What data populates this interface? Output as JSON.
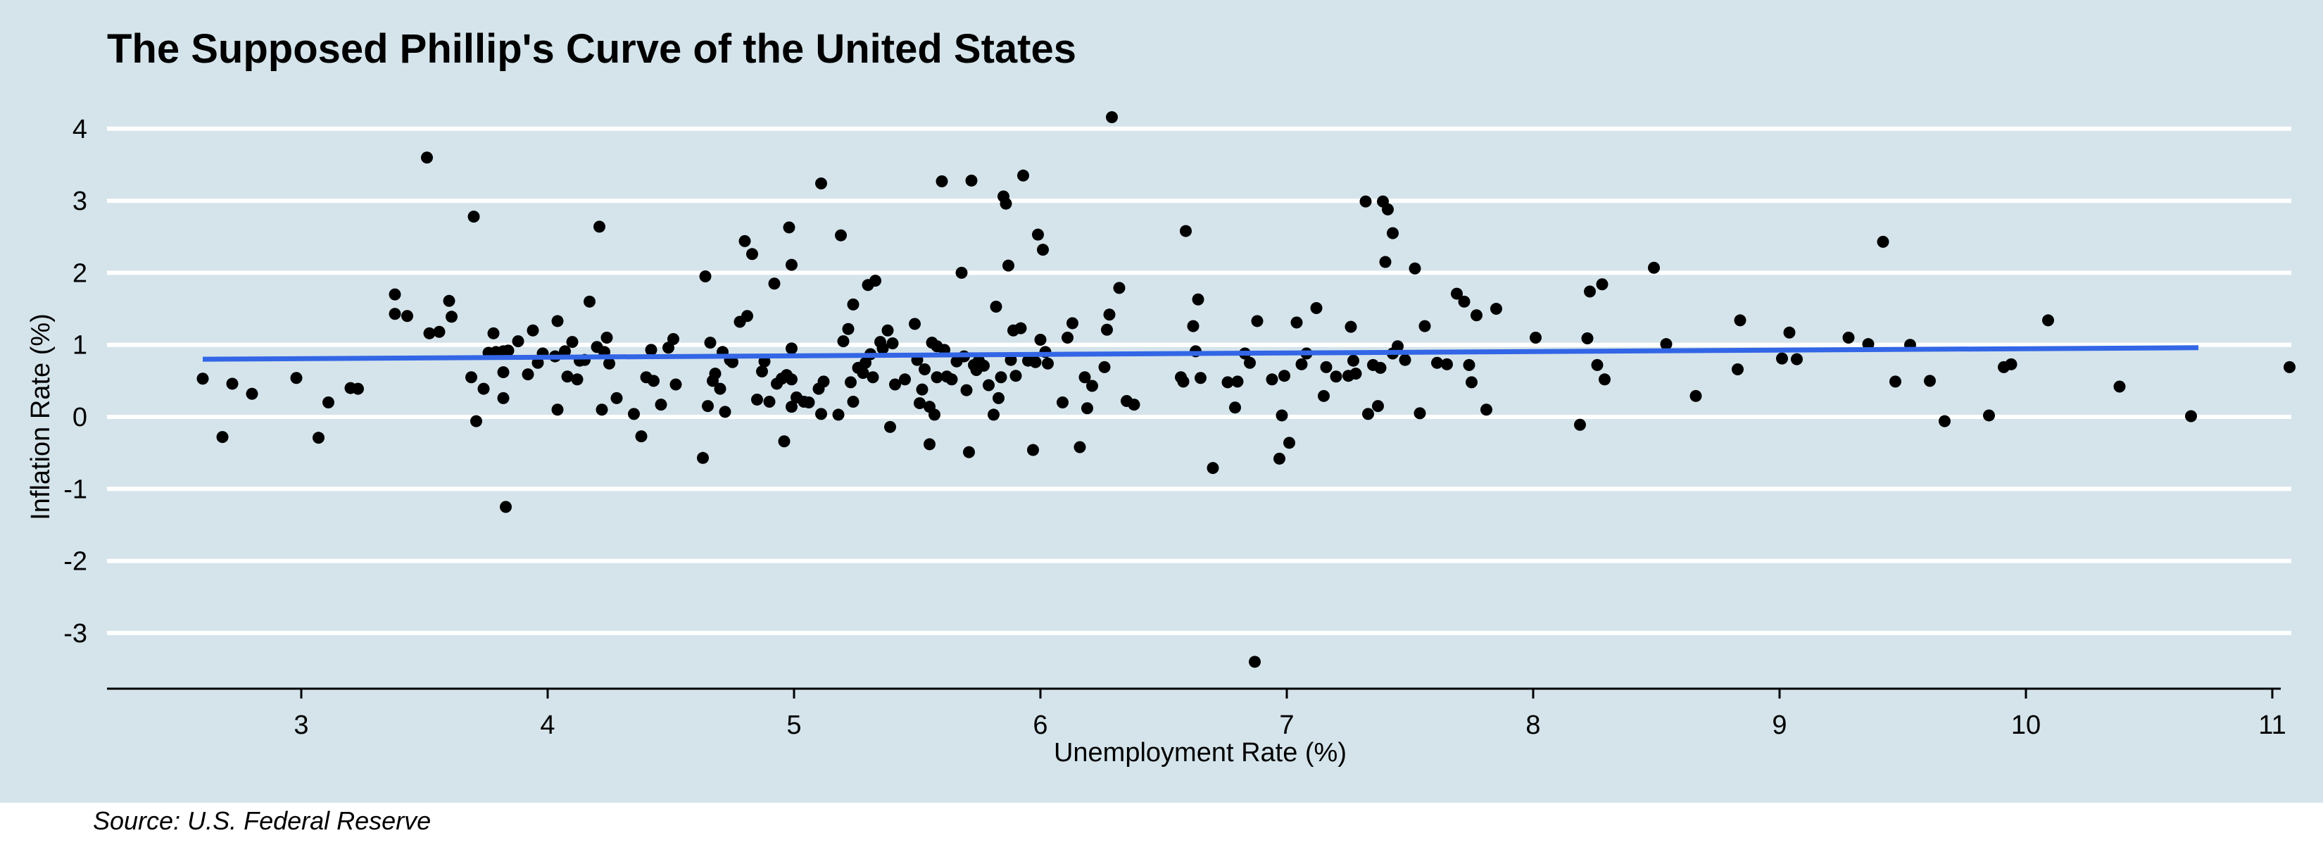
{
  "chart_data": {
    "type": "scatter",
    "title": "The Supposed Phillip's Curve of the United States",
    "xlabel": "Unemployment Rate (%)",
    "ylabel": "Inflation Rate (%)",
    "xlim": [
      2.2,
      11.1
    ],
    "ylim": [
      -3.8,
      4.3
    ],
    "x_ticks": [
      3,
      4,
      5,
      6,
      7,
      8,
      9,
      10,
      11
    ],
    "y_ticks": [
      -3,
      -2,
      -1,
      0,
      1,
      2,
      3,
      4
    ],
    "grid": "horizontal",
    "source": "Source: U.S. Federal Reserve",
    "colors": {
      "background": "#d5e4eb",
      "points": "#000000",
      "trend": "#3366e6",
      "grid": "#ffffff"
    },
    "trend_line": {
      "x": [
        2.6,
        10.7
      ],
      "y": [
        0.8,
        0.96
      ]
    },
    "points": [
      [
        2.6,
        0.53
      ],
      [
        2.68,
        -0.28
      ],
      [
        2.72,
        0.46
      ],
      [
        2.8,
        0.32
      ],
      [
        2.98,
        0.54
      ],
      [
        3.07,
        -0.29
      ],
      [
        3.11,
        0.2
      ],
      [
        3.2,
        0.4
      ],
      [
        3.23,
        0.39
      ],
      [
        3.38,
        1.7
      ],
      [
        3.38,
        1.43
      ],
      [
        3.43,
        1.4
      ],
      [
        3.51,
        3.6
      ],
      [
        3.52,
        1.16
      ],
      [
        3.56,
        1.18
      ],
      [
        3.6,
        1.61
      ],
      [
        3.61,
        1.39
      ],
      [
        3.69,
        0.55
      ],
      [
        3.7,
        2.78
      ],
      [
        3.71,
        -0.06
      ],
      [
        3.74,
        0.39
      ],
      [
        3.76,
        0.89
      ],
      [
        3.78,
        1.16
      ],
      [
        3.79,
        0.9
      ],
      [
        3.82,
        0.91
      ],
      [
        3.82,
        0.62
      ],
      [
        3.83,
        -1.25
      ],
      [
        3.82,
        0.26
      ],
      [
        3.84,
        0.92
      ],
      [
        3.88,
        1.05
      ],
      [
        3.92,
        0.59
      ],
      [
        3.94,
        1.2
      ],
      [
        3.96,
        0.75
      ],
      [
        3.98,
        0.88
      ],
      [
        4.03,
        0.84
      ],
      [
        4.04,
        0.1
      ],
      [
        4.04,
        1.33
      ],
      [
        4.07,
        0.91
      ],
      [
        4.08,
        0.56
      ],
      [
        4.1,
        1.04
      ],
      [
        4.12,
        0.52
      ],
      [
        4.13,
        0.78
      ],
      [
        4.15,
        0.79
      ],
      [
        4.17,
        1.6
      ],
      [
        4.2,
        0.97
      ],
      [
        4.21,
        2.64
      ],
      [
        4.22,
        0.1
      ],
      [
        4.23,
        0.9
      ],
      [
        4.24,
        1.1
      ],
      [
        4.25,
        0.74
      ],
      [
        4.28,
        0.26
      ],
      [
        4.35,
        0.04
      ],
      [
        4.38,
        -0.27
      ],
      [
        4.4,
        0.55
      ],
      [
        4.42,
        0.93
      ],
      [
        4.43,
        0.5
      ],
      [
        4.46,
        0.17
      ],
      [
        4.49,
        0.96
      ],
      [
        4.51,
        1.08
      ],
      [
        4.52,
        0.45
      ],
      [
        4.63,
        -0.57
      ],
      [
        4.64,
        1.95
      ],
      [
        4.65,
        0.15
      ],
      [
        4.66,
        1.03
      ],
      [
        4.67,
        0.5
      ],
      [
        4.68,
        0.6
      ],
      [
        4.7,
        0.39
      ],
      [
        4.71,
        0.9
      ],
      [
        4.72,
        0.07
      ],
      [
        4.74,
        0.79
      ],
      [
        4.75,
        0.76
      ],
      [
        4.78,
        1.32
      ],
      [
        4.8,
        2.44
      ],
      [
        4.81,
        1.4
      ],
      [
        4.83,
        2.26
      ],
      [
        4.85,
        0.24
      ],
      [
        4.87,
        0.63
      ],
      [
        4.88,
        0.77
      ],
      [
        4.9,
        0.21
      ],
      [
        4.92,
        1.85
      ],
      [
        4.93,
        0.46
      ],
      [
        4.95,
        0.53
      ],
      [
        4.97,
        0.58
      ],
      [
        4.96,
        -0.34
      ],
      [
        4.98,
        2.63
      ],
      [
        4.99,
        2.11
      ],
      [
        4.99,
        0.52
      ],
      [
        4.99,
        0.14
      ],
      [
        4.99,
        0.95
      ],
      [
        5.01,
        0.27
      ],
      [
        5.04,
        0.21
      ],
      [
        5.06,
        0.2
      ],
      [
        5.1,
        0.39
      ],
      [
        5.11,
        3.24
      ],
      [
        5.11,
        0.04
      ],
      [
        5.12,
        0.49
      ],
      [
        5.18,
        0.03
      ],
      [
        5.19,
        2.52
      ],
      [
        5.2,
        1.05
      ],
      [
        5.22,
        1.22
      ],
      [
        5.23,
        0.48
      ],
      [
        5.24,
        1.56
      ],
      [
        5.24,
        0.21
      ],
      [
        5.26,
        0.68
      ],
      [
        5.28,
        0.61
      ],
      [
        5.29,
        0.75
      ],
      [
        5.3,
        1.83
      ],
      [
        5.31,
        0.87
      ],
      [
        5.32,
        0.55
      ],
      [
        5.33,
        1.89
      ],
      [
        5.35,
        1.04
      ],
      [
        5.36,
        0.95
      ],
      [
        5.38,
        1.2
      ],
      [
        5.39,
        -0.14
      ],
      [
        5.4,
        1.02
      ],
      [
        5.41,
        0.45
      ],
      [
        5.45,
        0.52
      ],
      [
        5.49,
        1.29
      ],
      [
        5.5,
        0.79
      ],
      [
        5.51,
        0.19
      ],
      [
        5.52,
        0.38
      ],
      [
        5.53,
        0.66
      ],
      [
        5.55,
        -0.38
      ],
      [
        5.55,
        0.14
      ],
      [
        5.56,
        1.03
      ],
      [
        5.57,
        0.03
      ],
      [
        5.58,
        0.98
      ],
      [
        5.58,
        0.55
      ],
      [
        5.6,
        3.27
      ],
      [
        5.61,
        0.93
      ],
      [
        5.62,
        0.56
      ],
      [
        5.64,
        0.52
      ],
      [
        5.66,
        0.77
      ],
      [
        5.68,
        2.0
      ],
      [
        5.69,
        0.84
      ],
      [
        5.7,
        0.37
      ],
      [
        5.71,
        -0.49
      ],
      [
        5.72,
        3.28
      ],
      [
        5.73,
        0.72
      ],
      [
        5.74,
        0.65
      ],
      [
        5.75,
        0.78
      ],
      [
        5.77,
        0.71
      ],
      [
        5.79,
        0.44
      ],
      [
        5.81,
        0.03
      ],
      [
        5.82,
        1.53
      ],
      [
        5.83,
        0.26
      ],
      [
        5.84,
        0.55
      ],
      [
        5.85,
        3.06
      ],
      [
        5.86,
        2.96
      ],
      [
        5.87,
        2.1
      ],
      [
        5.88,
        0.79
      ],
      [
        5.89,
        1.2
      ],
      [
        5.9,
        0.57
      ],
      [
        5.92,
        1.23
      ],
      [
        5.93,
        3.35
      ],
      [
        5.95,
        0.78
      ],
      [
        5.97,
        -0.46
      ],
      [
        5.98,
        0.76
      ],
      [
        5.99,
        2.53
      ],
      [
        6.0,
        1.07
      ],
      [
        6.01,
        2.32
      ],
      [
        6.02,
        0.9
      ],
      [
        6.03,
        0.74
      ],
      [
        6.09,
        0.2
      ],
      [
        6.11,
        1.1
      ],
      [
        6.13,
        1.3
      ],
      [
        6.16,
        -0.42
      ],
      [
        6.18,
        0.55
      ],
      [
        6.19,
        0.12
      ],
      [
        6.21,
        0.43
      ],
      [
        6.26,
        0.69
      ],
      [
        6.27,
        1.21
      ],
      [
        6.28,
        1.42
      ],
      [
        6.29,
        4.16
      ],
      [
        6.32,
        1.79
      ],
      [
        6.35,
        0.22
      ],
      [
        6.38,
        0.17
      ],
      [
        6.57,
        0.55
      ],
      [
        6.58,
        0.49
      ],
      [
        6.59,
        2.58
      ],
      [
        6.62,
        1.26
      ],
      [
        6.63,
        0.91
      ],
      [
        6.64,
        1.63
      ],
      [
        6.65,
        0.54
      ],
      [
        6.7,
        -0.71
      ],
      [
        6.76,
        0.48
      ],
      [
        6.79,
        0.13
      ],
      [
        6.8,
        0.49
      ],
      [
        6.83,
        0.88
      ],
      [
        6.85,
        0.75
      ],
      [
        6.87,
        -3.4
      ],
      [
        6.88,
        1.33
      ],
      [
        6.94,
        0.52
      ],
      [
        6.97,
        -0.58
      ],
      [
        6.98,
        0.02
      ],
      [
        6.99,
        0.57
      ],
      [
        7.01,
        -0.36
      ],
      [
        7.04,
        1.31
      ],
      [
        7.06,
        0.73
      ],
      [
        7.08,
        0.88
      ],
      [
        7.12,
        1.51
      ],
      [
        7.15,
        0.29
      ],
      [
        7.16,
        0.69
      ],
      [
        7.2,
        0.56
      ],
      [
        7.25,
        0.57
      ],
      [
        7.26,
        1.25
      ],
      [
        7.27,
        0.78
      ],
      [
        7.28,
        0.6
      ],
      [
        7.32,
        2.99
      ],
      [
        7.33,
        0.04
      ],
      [
        7.35,
        0.72
      ],
      [
        7.37,
        0.15
      ],
      [
        7.38,
        0.68
      ],
      [
        7.39,
        2.99
      ],
      [
        7.4,
        2.15
      ],
      [
        7.41,
        2.88
      ],
      [
        7.43,
        2.55
      ],
      [
        7.43,
        0.88
      ],
      [
        7.45,
        0.98
      ],
      [
        7.48,
        0.79
      ],
      [
        7.52,
        2.06
      ],
      [
        7.54,
        0.05
      ],
      [
        7.56,
        1.26
      ],
      [
        7.61,
        0.75
      ],
      [
        7.65,
        0.73
      ],
      [
        7.69,
        1.71
      ],
      [
        7.72,
        1.6
      ],
      [
        7.74,
        0.72
      ],
      [
        7.75,
        0.48
      ],
      [
        7.77,
        1.41
      ],
      [
        7.81,
        0.1
      ],
      [
        7.85,
        1.5
      ],
      [
        8.01,
        1.1
      ],
      [
        8.19,
        -0.11
      ],
      [
        8.22,
        1.09
      ],
      [
        8.23,
        1.74
      ],
      [
        8.26,
        0.72
      ],
      [
        8.28,
        1.84
      ],
      [
        8.29,
        0.52
      ],
      [
        8.49,
        2.07
      ],
      [
        8.54,
        1.01
      ],
      [
        8.66,
        0.29
      ],
      [
        8.83,
        0.66
      ],
      [
        8.84,
        1.34
      ],
      [
        9.01,
        0.81
      ],
      [
        9.04,
        1.17
      ],
      [
        9.07,
        0.8
      ],
      [
        9.28,
        1.1
      ],
      [
        9.36,
        1.01
      ],
      [
        9.42,
        2.43
      ],
      [
        9.47,
        0.49
      ],
      [
        9.53,
        1.0
      ],
      [
        9.61,
        0.5
      ],
      [
        9.67,
        -0.06
      ],
      [
        9.85,
        0.02
      ],
      [
        9.91,
        0.69
      ],
      [
        9.94,
        0.73
      ],
      [
        10.09,
        1.34
      ],
      [
        10.38,
        0.42
      ],
      [
        10.67,
        0.01
      ],
      [
        11.07,
        0.69
      ]
    ]
  }
}
